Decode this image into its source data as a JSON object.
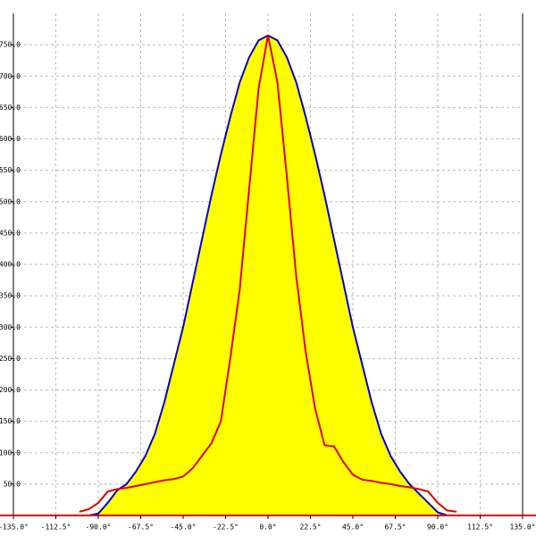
{
  "chart_data": {
    "type": "line",
    "x": [
      -100,
      -95,
      -90,
      -85,
      -80,
      -75,
      -70,
      -65,
      -60,
      -55,
      -50,
      -45,
      -40,
      -35,
      -30,
      -25,
      -20,
      -15,
      -10,
      -5,
      0,
      5,
      10,
      15,
      20,
      25,
      30,
      35,
      40,
      45,
      50,
      55,
      60,
      65,
      70,
      75,
      80,
      85,
      90,
      95,
      100
    ],
    "series": [
      {
        "color": "#0000cc",
        "fill": "#ffff00",
        "values": [
          0,
          0,
          3,
          20,
          40,
          50,
          70,
          95,
          130,
          180,
          240,
          300,
          370,
          440,
          510,
          575,
          635,
          690,
          730,
          757,
          765,
          757,
          730,
          690,
          635,
          575,
          510,
          440,
          370,
          300,
          240,
          180,
          130,
          95,
          70,
          50,
          35,
          20,
          5,
          0,
          0
        ]
      },
      {
        "color": "#dd0000",
        "values": [
          6,
          10,
          20,
          38,
          42,
          44,
          47,
          50,
          53,
          56,
          58,
          62,
          75,
          95,
          115,
          150,
          250,
          360,
          520,
          680,
          765,
          690,
          540,
          380,
          260,
          170,
          112,
          110,
          85,
          65,
          57,
          55,
          52,
          50,
          47,
          45,
          42,
          38,
          20,
          8,
          6
        ]
      }
    ],
    "xlim": [
      -135,
      135
    ],
    "xticks": [
      {
        "value": -135,
        "label": "-135.0°"
      },
      {
        "value": -112.5,
        "label": "-112.5°"
      },
      {
        "value": -90,
        "label": "-90.0°"
      },
      {
        "value": -67.5,
        "label": "-67.5°"
      },
      {
        "value": -45,
        "label": "-45.0°"
      },
      {
        "value": -22.5,
        "label": "-22.5°"
      },
      {
        "value": 0,
        "label": "0.0°"
      },
      {
        "value": 22.5,
        "label": "22.5°"
      },
      {
        "value": 45,
        "label": "45.0°"
      },
      {
        "value": 67.5,
        "label": "67.5°"
      },
      {
        "value": 90,
        "label": "90.0°"
      },
      {
        "value": 112.5,
        "label": "112.5°"
      },
      {
        "value": 135,
        "label": "135.0°"
      }
    ],
    "ylim": [
      0,
      800
    ],
    "yticks": [
      {
        "value": 50,
        "label": "50.0"
      },
      {
        "value": 100,
        "label": "100.0"
      },
      {
        "value": 150,
        "label": "150.0"
      },
      {
        "value": 200,
        "label": "200.0"
      },
      {
        "value": 250,
        "label": "250.0"
      },
      {
        "value": 300,
        "label": "300.0"
      },
      {
        "value": 350,
        "label": "350.0"
      },
      {
        "value": 400,
        "label": "400.0"
      },
      {
        "value": 450,
        "label": "450.0"
      },
      {
        "value": 500,
        "label": "500.0"
      },
      {
        "value": 550,
        "label": "550.0"
      },
      {
        "value": 600,
        "label": "600.0"
      },
      {
        "value": 650,
        "label": "650.0"
      },
      {
        "value": 700,
        "label": "700.0"
      },
      {
        "value": 750,
        "label": "750.0"
      }
    ],
    "grid": true
  }
}
